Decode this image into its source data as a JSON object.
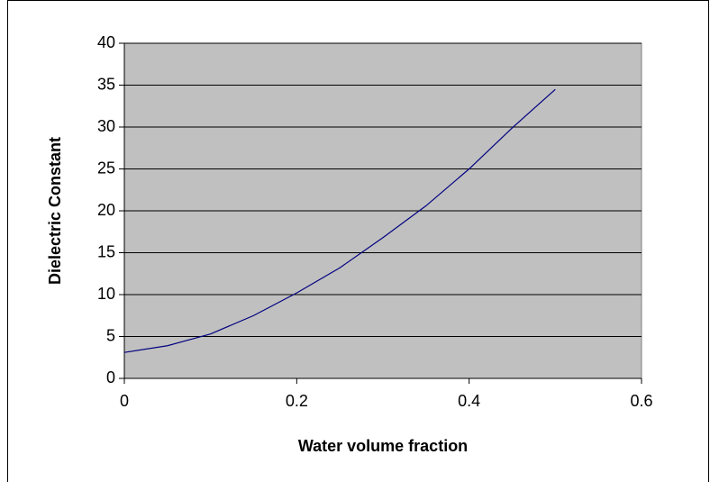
{
  "chart_data": {
    "type": "line",
    "xlabel": "Water volume fraction",
    "ylabel": "Dielectric Constant",
    "x": [
      0,
      0.05,
      0.1,
      0.15,
      0.2,
      0.25,
      0.3,
      0.35,
      0.4,
      0.45,
      0.5
    ],
    "series": [
      {
        "color": "#000080",
        "values": [
          3.1,
          3.9,
          5.3,
          7.5,
          10.2,
          13.2,
          16.8,
          20.6,
          25.0,
          29.9,
          34.5
        ]
      }
    ],
    "xlim": [
      0,
      0.6
    ],
    "xticks": [
      0,
      0.2,
      0.4,
      0.6
    ],
    "ylim": [
      0,
      40
    ],
    "yticks": [
      0,
      5,
      10,
      15,
      20,
      25,
      30,
      35,
      40
    ],
    "grid": true,
    "plot_background": "#c0c0c0"
  }
}
